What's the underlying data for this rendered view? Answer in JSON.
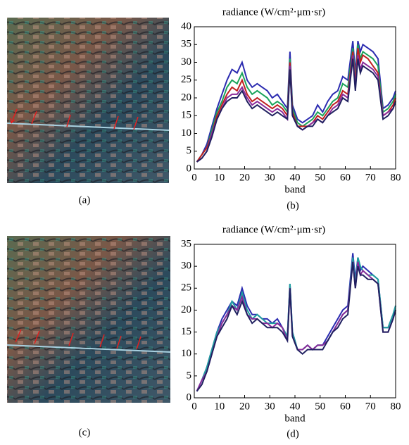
{
  "captions": [
    "(a)",
    "(b)",
    "(c)",
    "(d)"
  ],
  "chart_data": [
    {
      "type": "line",
      "title": "radiance (W/cm²·μm·sr)",
      "xlabel": "band",
      "xlim": [
        0,
        80
      ],
      "xticks": [
        0,
        10,
        20,
        30,
        40,
        50,
        60,
        70,
        80
      ],
      "ylim": [
        0,
        40
      ],
      "yticks": [
        0,
        5,
        10,
        15,
        20,
        25,
        30,
        35,
        40
      ],
      "x": [
        1,
        3,
        5,
        7,
        9,
        11,
        13,
        15,
        17,
        19,
        21,
        23,
        25,
        27,
        29,
        31,
        33,
        35,
        37,
        38,
        39,
        41,
        43,
        45,
        47,
        49,
        51,
        53,
        55,
        57,
        59,
        61,
        63,
        64,
        65,
        66,
        67,
        69,
        71,
        73,
        75,
        77,
        79,
        80
      ],
      "series": [
        {
          "color": "#2b2bb0",
          "values": [
            2,
            4,
            7,
            12,
            17,
            21,
            25,
            28,
            27,
            30,
            25,
            23,
            24,
            23,
            22,
            20,
            21,
            19,
            17,
            33,
            18,
            14,
            13,
            14,
            15,
            18,
            16,
            19,
            21,
            22,
            26,
            25,
            36,
            27,
            36,
            33,
            35,
            34,
            33,
            31,
            17,
            18,
            20,
            22
          ]
        },
        {
          "color": "#1aa35a",
          "values": [
            2,
            4,
            6,
            11,
            16,
            19,
            23,
            25,
            24,
            27,
            23,
            21,
            22,
            21,
            20,
            18,
            19,
            18,
            16,
            31,
            17,
            13,
            12,
            13,
            14,
            16,
            15,
            17,
            19,
            20,
            24,
            23,
            34,
            25,
            35,
            31,
            33,
            32,
            31,
            29,
            16,
            17,
            19,
            21
          ]
        },
        {
          "color": "#c02020",
          "values": [
            2,
            4,
            6,
            10,
            15,
            18,
            21,
            23,
            22,
            25,
            21,
            19,
            20,
            19,
            18,
            17,
            18,
            17,
            15,
            30,
            16,
            12,
            12,
            12,
            13,
            15,
            14,
            16,
            18,
            19,
            22,
            21,
            33,
            24,
            34,
            30,
            32,
            31,
            29,
            27,
            15,
            16,
            18,
            20
          ]
        },
        {
          "color": "#8a2a9a",
          "values": [
            2,
            3,
            5,
            10,
            14,
            17,
            20,
            21,
            21,
            23,
            20,
            18,
            19,
            18,
            17,
            16,
            17,
            16,
            14,
            29,
            15,
            12,
            11,
            12,
            13,
            14,
            13,
            15,
            17,
            18,
            21,
            20,
            32,
            23,
            32,
            28,
            30,
            29,
            28,
            26,
            15,
            16,
            17,
            19
          ]
        },
        {
          "color": "#202060",
          "values": [
            2,
            3,
            5,
            9,
            14,
            17,
            19,
            20,
            20,
            22,
            19,
            17,
            18,
            17,
            16,
            15,
            16,
            15,
            14,
            28,
            15,
            12,
            11,
            12,
            12,
            14,
            13,
            15,
            16,
            17,
            20,
            19,
            31,
            22,
            31,
            27,
            29,
            28,
            27,
            25,
            14,
            15,
            17,
            19
          ]
        }
      ]
    },
    {
      "type": "line",
      "title": "radiance (W/cm²·μm·sr)",
      "xlabel": "band",
      "xlim": [
        0,
        80
      ],
      "xticks": [
        0,
        10,
        20,
        30,
        40,
        50,
        60,
        70,
        80
      ],
      "ylim": [
        0,
        35
      ],
      "yticks": [
        0,
        5,
        10,
        15,
        20,
        25,
        30,
        35
      ],
      "x": [
        1,
        3,
        5,
        7,
        9,
        11,
        13,
        15,
        17,
        19,
        21,
        23,
        25,
        27,
        29,
        31,
        33,
        35,
        37,
        38,
        39,
        41,
        43,
        45,
        47,
        49,
        51,
        53,
        55,
        57,
        59,
        61,
        63,
        64,
        65,
        66,
        67,
        69,
        71,
        73,
        75,
        77,
        79,
        80
      ],
      "series": [
        {
          "color": "#2b2bb0",
          "values": [
            1.5,
            4,
            7,
            11,
            15,
            18,
            20,
            22,
            21,
            25,
            21,
            19,
            19,
            18,
            18,
            17,
            18,
            16,
            14,
            26,
            15,
            11,
            11,
            12,
            11,
            12,
            12,
            14,
            16,
            18,
            20,
            21,
            33,
            27,
            32,
            29,
            30,
            29,
            28,
            27,
            16,
            16,
            19,
            21
          ]
        },
        {
          "color": "#20a0a0",
          "values": [
            1.5,
            4,
            7,
            11,
            15,
            17,
            19,
            22,
            20,
            24,
            20,
            18,
            19,
            18,
            17,
            17,
            17,
            16,
            14,
            26,
            15,
            11,
            11,
            12,
            11,
            12,
            12,
            13,
            15,
            17,
            19,
            20,
            32,
            26,
            32,
            30,
            29,
            28,
            28,
            27,
            16,
            16,
            19,
            21
          ]
        },
        {
          "color": "#8a2a9a",
          "values": [
            1.5,
            4,
            6,
            10,
            14,
            17,
            19,
            21,
            20,
            23,
            19,
            18,
            18,
            17,
            17,
            16,
            17,
            16,
            13,
            25,
            14,
            11,
            11,
            12,
            11,
            12,
            12,
            13,
            15,
            17,
            19,
            20,
            31,
            25,
            31,
            28,
            29,
            28,
            27,
            26,
            15,
            15,
            18,
            20
          ]
        },
        {
          "color": "#202060",
          "values": [
            1.5,
            3,
            6,
            10,
            14,
            16,
            18,
            21,
            19,
            22,
            19,
            17,
            18,
            17,
            16,
            16,
            16,
            15,
            13,
            25,
            14,
            11,
            10,
            11,
            11,
            11,
            11,
            13,
            15,
            16,
            18,
            19,
            31,
            25,
            30,
            28,
            28,
            27,
            27,
            26,
            15,
            15,
            18,
            20
          ]
        }
      ]
    }
  ]
}
